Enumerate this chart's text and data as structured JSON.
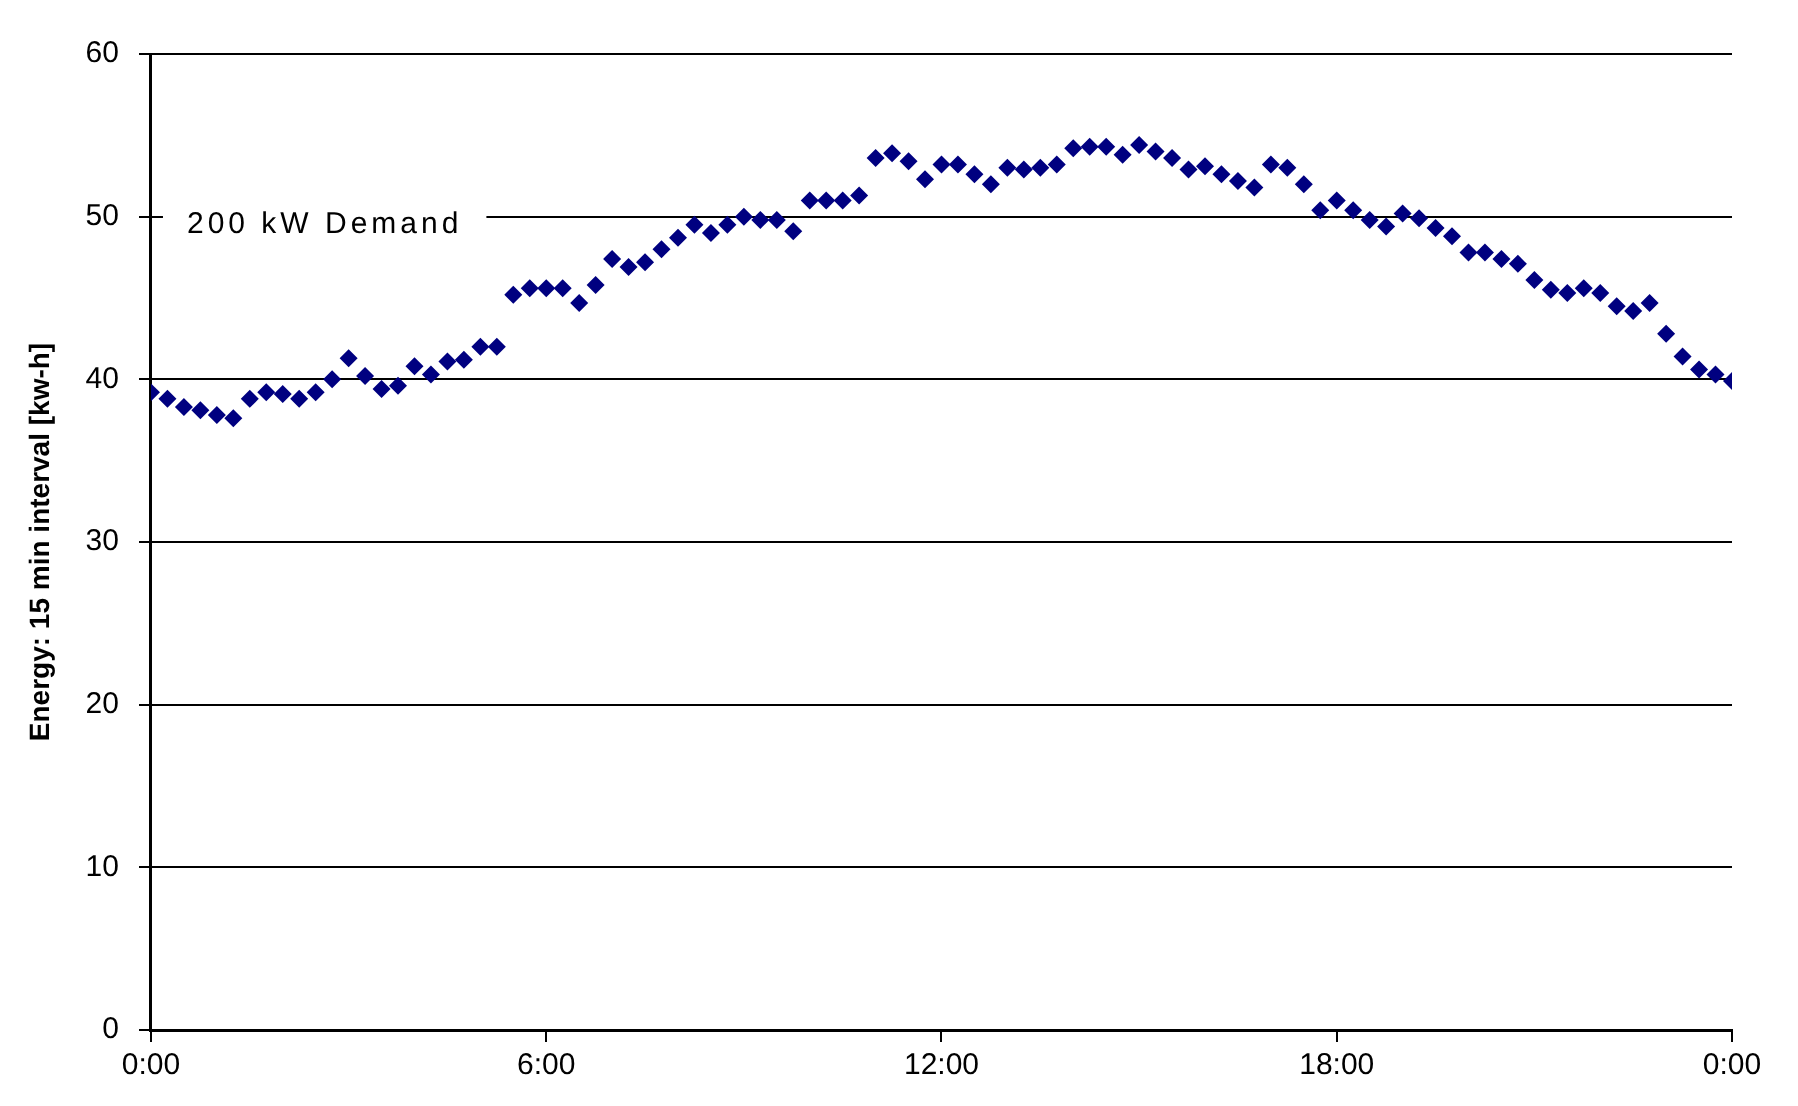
{
  "chart_data": {
    "type": "scatter",
    "ylabel": "Energy: 15 min interval [kw-h]",
    "x": [
      0,
      0.25,
      0.5,
      0.75,
      1,
      1.25,
      1.5,
      1.75,
      2,
      2.25,
      2.5,
      2.75,
      3,
      3.25,
      3.5,
      3.75,
      4,
      4.25,
      4.5,
      4.75,
      5,
      5.25,
      5.5,
      5.75,
      6,
      6.25,
      6.5,
      6.75,
      7,
      7.25,
      7.5,
      7.75,
      8,
      8.25,
      8.5,
      8.75,
      9,
      9.25,
      9.5,
      9.75,
      10,
      10.25,
      10.5,
      10.75,
      11,
      11.25,
      11.5,
      11.75,
      12,
      12.25,
      12.5,
      12.75,
      13,
      13.25,
      13.5,
      13.75,
      14,
      14.25,
      14.5,
      14.75,
      15,
      15.25,
      15.5,
      15.75,
      16,
      16.25,
      16.5,
      16.75,
      17,
      17.25,
      17.5,
      17.75,
      18,
      18.25,
      18.5,
      18.75,
      19,
      19.25,
      19.5,
      19.75,
      20,
      20.25,
      20.5,
      20.75,
      21,
      21.25,
      21.5,
      21.75,
      22,
      22.25,
      22.5,
      22.75,
      23,
      23.25,
      23.5,
      23.75,
      24
    ],
    "series": [
      {
        "color": "#000080",
        "values": [
          39.2,
          38.8,
          38.3,
          38.1,
          37.8,
          37.6,
          38.8,
          39.2,
          39.1,
          38.8,
          39.2,
          40.0,
          41.3,
          40.2,
          39.4,
          39.6,
          40.8,
          40.3,
          41.1,
          41.2,
          42.0,
          42.0,
          45.2,
          45.6,
          45.6,
          45.6,
          44.7,
          45.8,
          47.4,
          46.9,
          47.2,
          48.0,
          48.7,
          49.5,
          49.0,
          49.5,
          50.0,
          49.8,
          49.8,
          49.1,
          51.0,
          51.0,
          51.0,
          51.3,
          53.6,
          53.9,
          53.4,
          52.3,
          53.2,
          53.2,
          52.6,
          52.0,
          53.0,
          52.9,
          53.0,
          53.2,
          54.2,
          54.3,
          54.3,
          53.8,
          54.4,
          54.0,
          53.6,
          52.9,
          53.1,
          52.6,
          52.2,
          51.8,
          53.2,
          53.0,
          52.0,
          50.4,
          51.0,
          50.4,
          49.8,
          49.4,
          50.2,
          49.9,
          49.3,
          48.8,
          47.8,
          47.8,
          47.4,
          47.1,
          46.1,
          45.5,
          45.3,
          45.6,
          45.3,
          44.5,
          44.2,
          44.7,
          42.8,
          41.4,
          40.6,
          40.3,
          39.9
        ]
      }
    ],
    "xlim": [
      0,
      24
    ],
    "xticks": [
      {
        "value": 0,
        "label": "0:00"
      },
      {
        "value": 6,
        "label": "6:00"
      },
      {
        "value": 12,
        "label": "12:00"
      },
      {
        "value": 18,
        "label": "18:00"
      },
      {
        "value": 24,
        "label": "0:00"
      }
    ],
    "ylim": [
      0,
      60
    ],
    "yticks": [
      0,
      10,
      20,
      30,
      40,
      50,
      60
    ],
    "grid": "y",
    "marker": "diamond",
    "annotations": [
      "200 kW Demand"
    ]
  }
}
